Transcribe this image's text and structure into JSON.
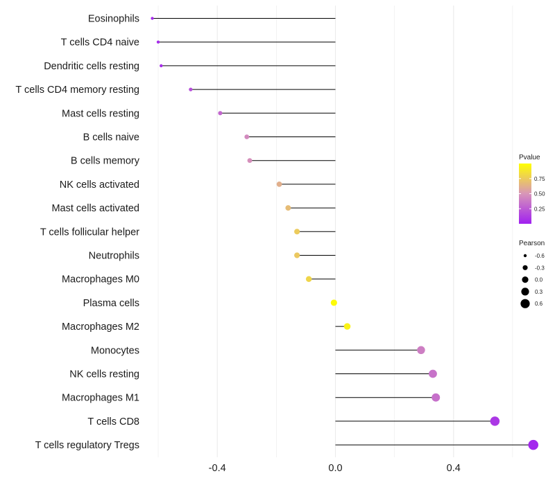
{
  "chart_data": {
    "type": "lollipop",
    "title": "",
    "xlabel": "",
    "ylabel": "",
    "xlim": [
      -0.64,
      0.72
    ],
    "x_ticks": [
      {
        "value": -0.4,
        "label": "-0.4"
      },
      {
        "value": 0.0,
        "label": "0.0"
      },
      {
        "value": 0.4,
        "label": "0.4"
      }
    ],
    "grid": true,
    "categories": [
      "Eosinophils",
      "T cells CD4 naive",
      "Dendritic cells resting",
      "T cells CD4 memory resting",
      "Mast cells resting",
      "B cells naive",
      "B cells memory",
      "NK cells activated",
      "Mast cells activated",
      "T cells follicular helper",
      "Neutrophils",
      "Macrophages M0",
      "Plasma cells",
      "Macrophages M2",
      "Monocytes",
      "NK cells resting",
      "Macrophages M1",
      "T cells CD8",
      "T cells regulatory  Tregs"
    ],
    "pearson": [
      -0.62,
      -0.6,
      -0.59,
      -0.49,
      -0.39,
      -0.3,
      -0.29,
      -0.19,
      -0.16,
      -0.13,
      -0.13,
      -0.09,
      -0.005,
      0.04,
      0.29,
      0.33,
      0.34,
      0.54,
      0.67
    ],
    "pvalue": [
      0.04,
      0.05,
      0.06,
      0.2,
      0.3,
      0.45,
      0.47,
      0.62,
      0.68,
      0.75,
      0.74,
      0.8,
      0.98,
      0.94,
      0.4,
      0.35,
      0.34,
      0.1,
      0.03
    ],
    "color_legend": {
      "title": "Pvalue",
      "ticks": [
        {
          "value": 0.25,
          "label": "0.25"
        },
        {
          "value": 0.5,
          "label": "0.50"
        },
        {
          "value": 0.75,
          "label": "0.75"
        }
      ],
      "range": [
        0.0,
        1.0
      ],
      "low_color": "#a020f0",
      "mid_color": "#d896b8",
      "high_color": "#ffff00",
      "position": "right"
    },
    "size_legend": {
      "title": "Pearson",
      "entries": [
        {
          "value": -0.6,
          "label": "-0.6"
        },
        {
          "value": -0.3,
          "label": "-0.3"
        },
        {
          "value": 0.0,
          "label": "0.0"
        },
        {
          "value": 0.3,
          "label": "0.3"
        },
        {
          "value": 0.6,
          "label": "0.6"
        }
      ],
      "position": "right"
    },
    "colors": {
      "segment": "#000000",
      "grid": "#ebebeb",
      "background": "#ffffff"
    }
  }
}
